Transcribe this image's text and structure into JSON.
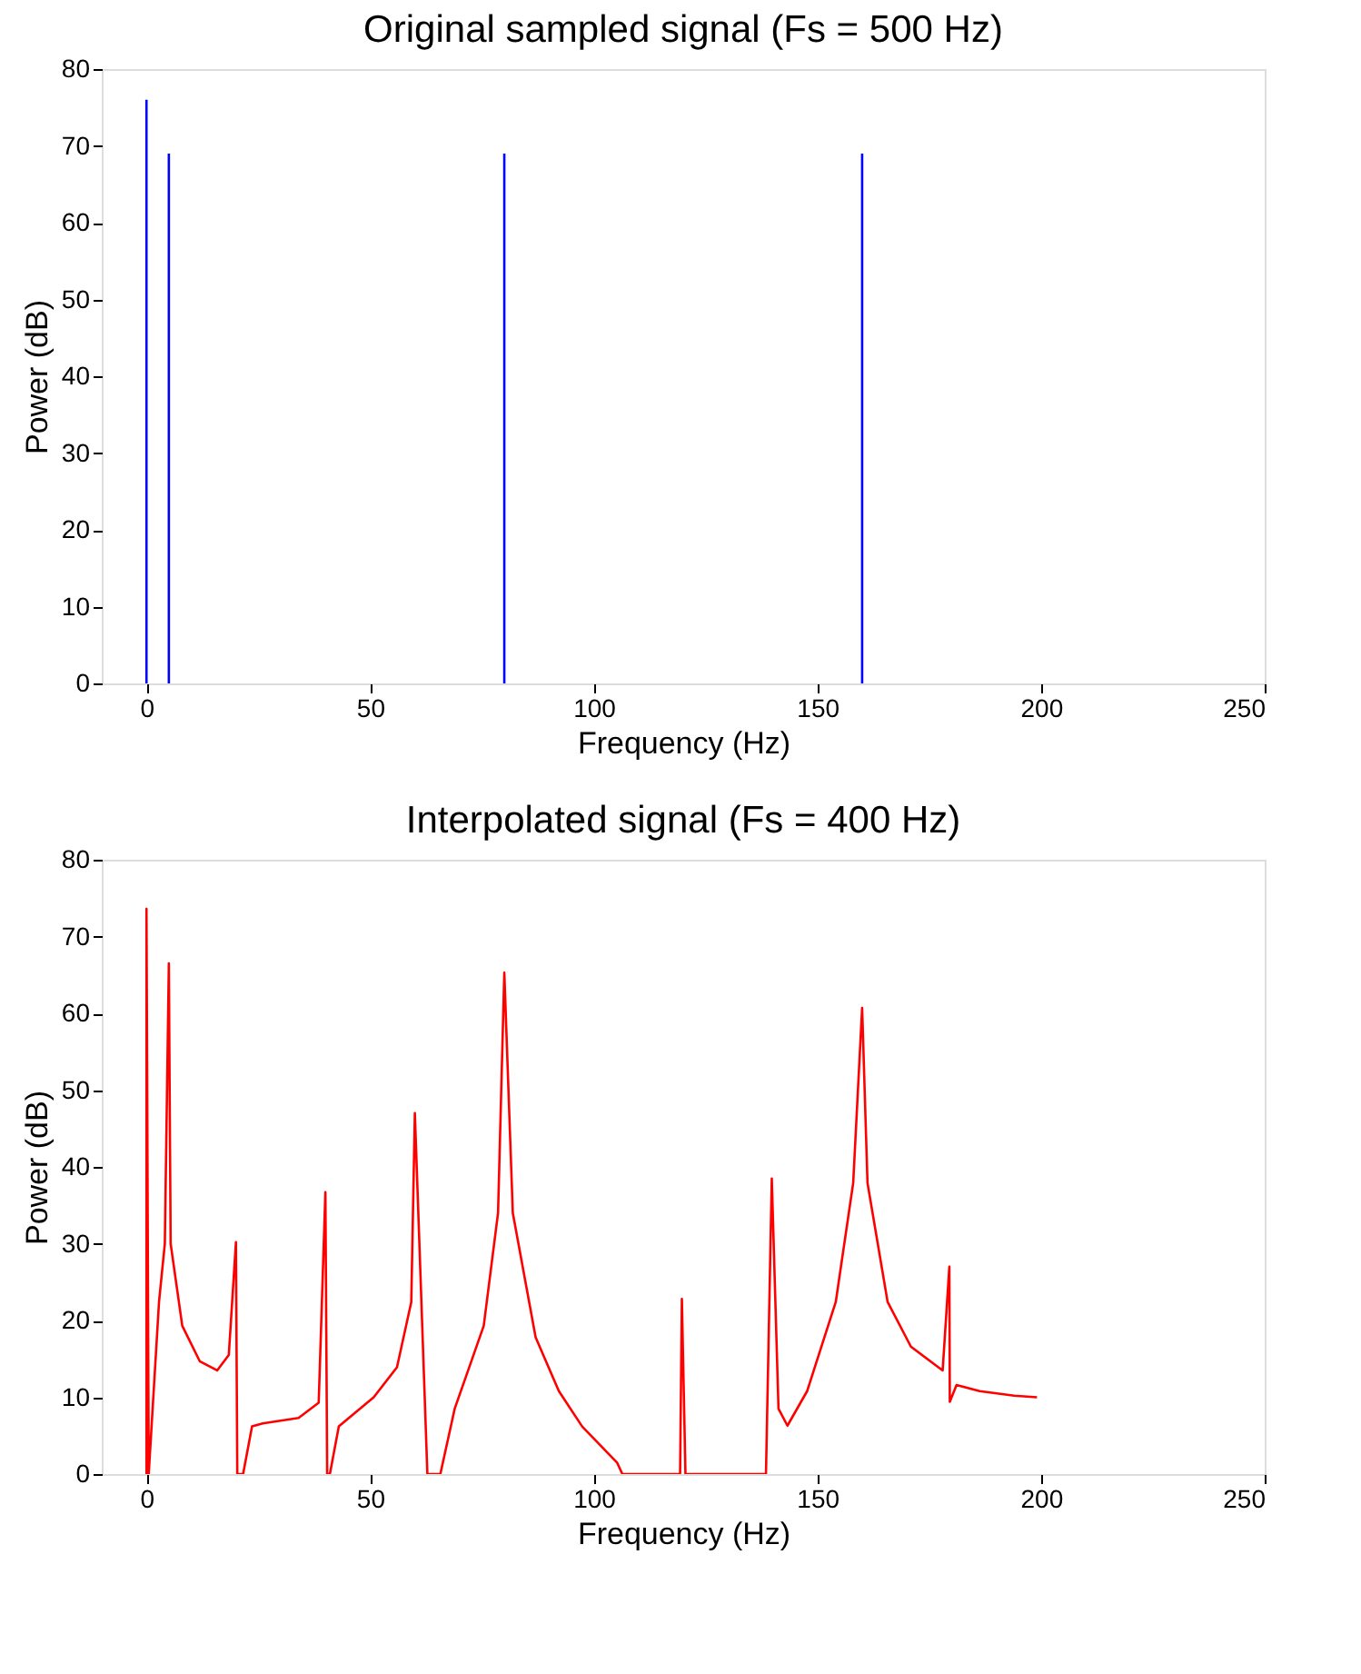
{
  "chart_data": [
    {
      "type": "line",
      "title": "Original sampled signal (Fs = 500 Hz)",
      "xlabel": "Frequency (Hz)",
      "ylabel": "Power (dB)",
      "xlim": [
        -10,
        250
      ],
      "xticks": [
        0,
        50,
        100,
        150,
        200,
        250
      ],
      "ylim": [
        0,
        80
      ],
      "yticks": [
        0,
        10,
        20,
        30,
        40,
        50,
        60,
        70,
        80
      ],
      "grid": false,
      "legend": false,
      "line_style": "solid",
      "marker": "none",
      "series": [
        {
          "color": "#0000ff",
          "x": [
            0,
            0,
            2,
            5,
            5,
            40,
            80,
            80,
            120,
            160,
            160
          ],
          "values": [
            0,
            76,
            null,
            0,
            69,
            null,
            0,
            69,
            null,
            0,
            69
          ]
        }
      ]
    },
    {
      "type": "line",
      "title": "Interpolated signal (Fs = 400 Hz)",
      "xlabel": "Frequency (Hz)",
      "ylabel": "Power (dB)",
      "xlim": [
        -10,
        250
      ],
      "xticks": [
        0,
        50,
        100,
        150,
        200,
        250
      ],
      "ylim": [
        0,
        80
      ],
      "yticks": [
        0,
        10,
        20,
        30,
        40,
        50,
        60,
        70,
        80
      ],
      "grid": false,
      "legend": false,
      "line_style": "solid",
      "marker": "none",
      "series": [
        {
          "color": "#ff0000",
          "x": [
            0,
            0,
            0.5,
            2.8,
            4.1,
            5,
            5.4,
            8,
            11.9,
            15.8,
            18.4,
            20,
            20.3,
            21.6,
            23.6,
            26,
            34,
            38.5,
            40,
            40.4,
            41,
            43,
            50.8,
            56,
            59.2,
            60,
            62.8,
            65.7,
            68.9,
            75.4,
            78.6,
            80,
            81.9,
            87,
            92.2,
            97.4,
            105.2,
            106.4,
            119.3,
            119.7,
            120.5,
            138.5,
            139.8,
            141.3,
            143.3,
            147.7,
            154.1,
            158,
            160,
            161.2,
            165.7,
            170.9,
            178,
            179.5,
            179.6,
            181.1,
            186.3,
            194,
            199.1
          ],
          "values": [
            0,
            73.6,
            0,
            22.4,
            30,
            66.5,
            30,
            19.3,
            14.7,
            13.5,
            15.5,
            30.2,
            0,
            0,
            6.2,
            6.6,
            7.3,
            9.3,
            36.7,
            0,
            0,
            6.2,
            10,
            13.9,
            22.4,
            47,
            0,
            0,
            8.5,
            19.3,
            34,
            65.3,
            34,
            17.8,
            10.8,
            6.2,
            1.5,
            0,
            0,
            22.8,
            0,
            0,
            38.5,
            8.5,
            6.3,
            10.8,
            22.4,
            37.9,
            60.7,
            37.9,
            22.4,
            16.6,
            13.5,
            27,
            9.4,
            11.6,
            10.8,
            10.2,
            10
          ]
        }
      ]
    }
  ]
}
